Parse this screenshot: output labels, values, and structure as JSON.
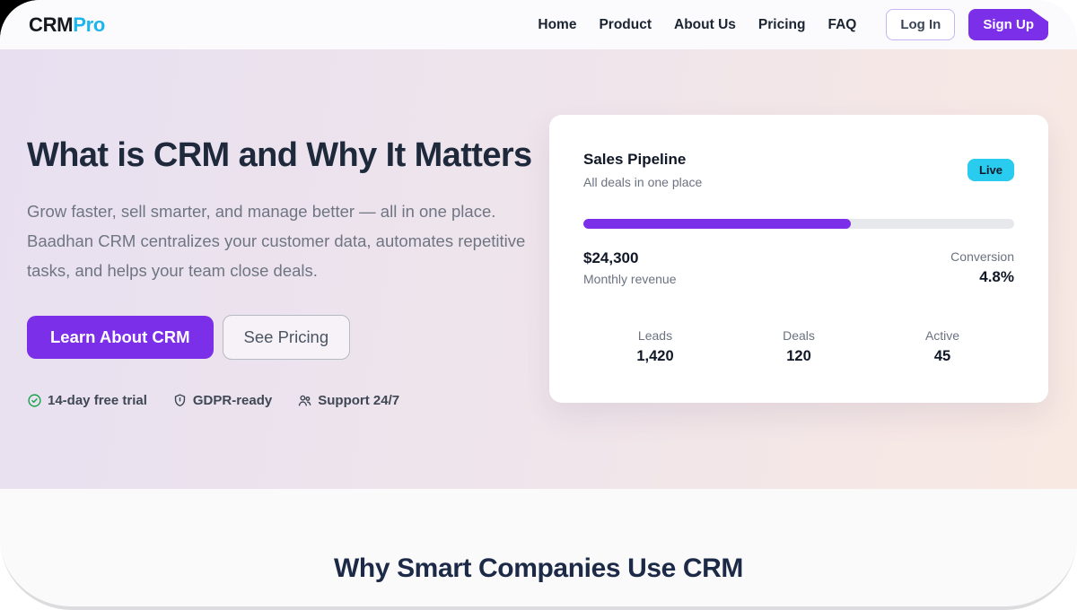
{
  "nav": {
    "logo": {
      "part1": "CRM",
      "part2": "Pro"
    },
    "links": [
      {
        "label": "Home"
      },
      {
        "label": "Product"
      },
      {
        "label": "About Us"
      },
      {
        "label": "Pricing"
      },
      {
        "label": "FAQ"
      }
    ],
    "login_label": "Log In",
    "signup_label": "Sign Up"
  },
  "hero": {
    "title": "What is CRM and Why It Matters",
    "description": "Grow faster, sell smarter, and manage better — all in one place.\nBaadhan CRM centralizes your customer data, automates repetitive\ntasks, and helps your team close deals.",
    "primary_cta": "Learn About CRM",
    "secondary_cta": "See Pricing",
    "trust_items": [
      {
        "icon": "check-circle-icon",
        "label": "14-day free trial"
      },
      {
        "icon": "shield-icon",
        "label": "GDPR-ready"
      },
      {
        "icon": "people-icon",
        "label": "Support 24/7"
      }
    ]
  },
  "pipeline_card": {
    "title": "Sales Pipeline",
    "subtitle": "All deals in one place",
    "badge": "Live",
    "progress_percent": 62,
    "revenue": {
      "value": "$24,300",
      "label": "Monthly revenue"
    },
    "conversion": {
      "label": "Conversion",
      "value": "4.8%"
    },
    "stats": [
      {
        "label": "Leads",
        "value": "1,420"
      },
      {
        "label": "Deals",
        "value": "120"
      },
      {
        "label": "Active",
        "value": "45"
      }
    ]
  },
  "section": {
    "title": "Why Smart Companies Use CRM"
  },
  "colors": {
    "accent_purple": "#7c2fe8",
    "live_badge_cyan": "#29cbee",
    "logo_cyan": "#1cb5ee",
    "check_green": "#16a34a",
    "heading_navy": "#1e2a3b",
    "hero_gradient_left": "#e8e0f1",
    "hero_gradient_right": "#f8e9e2"
  }
}
